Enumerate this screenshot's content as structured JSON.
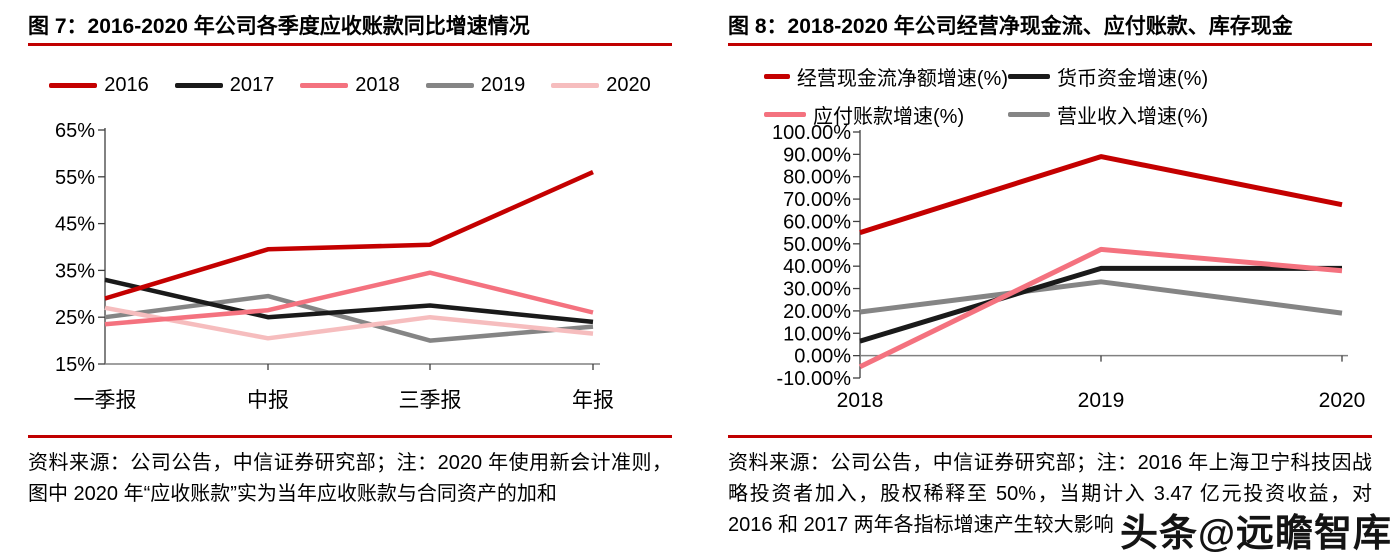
{
  "colors": {
    "accent_red": "#C00000",
    "line_red": "#C40000",
    "line_black": "#1A1A1A",
    "line_pink": "#F4727F",
    "line_gray": "#858585",
    "line_lightpink": "#F6BDBE",
    "axis_dark": "#3F3F3F",
    "axis_gray": "#808080"
  },
  "watermark": {
    "text": "头条@远瞻智库"
  },
  "fig7": {
    "title": "图 7：2016-2020 年公司各季度应收账款同比增速情况",
    "note": "资料来源：公司公告，中信证券研究部；注：2020 年使用新会计准则，图中 2020 年“应收账款”实为当年应收账款与合同资产的加和",
    "chart_data": {
      "type": "line",
      "title": "2016-2020 年公司各季度应收账款同比增速情况",
      "categories": [
        "一季报",
        "中报",
        "三季报",
        "年报"
      ],
      "series": [
        {
          "name": "2016",
          "color": "#C40000",
          "values": [
            29,
            39.5,
            40.5,
            56
          ]
        },
        {
          "name": "2017",
          "color": "#1A1A1A",
          "values": [
            33,
            25,
            27.5,
            24
          ]
        },
        {
          "name": "2018",
          "color": "#F4727F",
          "values": [
            23.5,
            26.5,
            34.5,
            26
          ]
        },
        {
          "name": "2019",
          "color": "#858585",
          "values": [
            25,
            29.5,
            20,
            23
          ]
        },
        {
          "name": "2020",
          "color": "#F6BDBE",
          "values": [
            27,
            20.5,
            25,
            21.5
          ]
        }
      ],
      "ylim": [
        15,
        65
      ],
      "ytick_values": [
        65,
        55,
        45,
        35,
        25,
        15
      ],
      "ytick_labels": [
        "65%",
        "55%",
        "45%",
        "35%",
        "25%",
        "15%"
      ],
      "legend_position": "top",
      "grid": false
    }
  },
  "fig8": {
    "title": "图 8：2018-2020 年公司经营净现金流、应付账款、库存现金",
    "note": "资料来源：公司公告，中信证券研究部；注：2016 年上海卫宁科技因战略投资者加入，股权稀释至 50%，当期计入 3.47 亿元投资收益，对 2016 和 2017 两年各指标增速产生较大影响",
    "chart_data": {
      "type": "line",
      "title": "2018-2020 年公司经营净现金流、应付账款、库存现金",
      "categories": [
        "2018",
        "2019",
        "2020"
      ],
      "series": [
        {
          "name": "经营现金流净额增速(%)",
          "color": "#C40000",
          "values": [
            55,
            89,
            67.5
          ]
        },
        {
          "name": "货币资金增速(%)",
          "color": "#1A1A1A",
          "values": [
            6.5,
            39,
            39
          ]
        },
        {
          "name": "应付账款增速(%)",
          "color": "#F4727F",
          "values": [
            -5,
            47.5,
            38
          ]
        },
        {
          "name": "营业收入增速(%)",
          "color": "#858585",
          "values": [
            19.5,
            33,
            19
          ]
        }
      ],
      "ylim": [
        -10,
        100
      ],
      "ytick_values": [
        100,
        90,
        80,
        70,
        60,
        50,
        40,
        30,
        20,
        10,
        0,
        -10
      ],
      "ytick_labels": [
        "100.00%",
        "90.00%",
        "80.00%",
        "70.00%",
        "60.00%",
        "50.00%",
        "40.00%",
        "30.00%",
        "20.00%",
        "10.00%",
        "0.00%",
        "-10.00%"
      ],
      "baseline": 0,
      "legend_position": "top",
      "grid": false
    }
  }
}
